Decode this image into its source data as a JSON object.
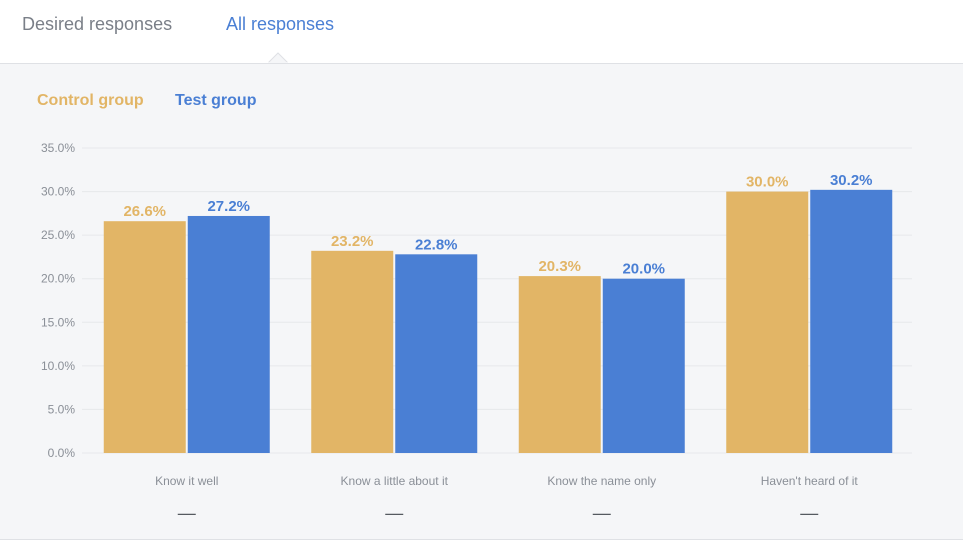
{
  "tabs": {
    "desired": "Desired responses",
    "all": "All responses"
  },
  "colors": {
    "control": "#e2b566",
    "test": "#4a7fd4",
    "grid": "#e6e8eb",
    "dash": "#555a60"
  },
  "chart_data": {
    "type": "bar",
    "categories": [
      "Know it well",
      "Know a little about it",
      "Know the name only",
      "Haven't heard of it"
    ],
    "series": [
      {
        "name": "Control group",
        "values": [
          26.6,
          23.2,
          20.3,
          30.0
        ],
        "labels": [
          "26.6%",
          "23.2%",
          "20.3%",
          "30.0%"
        ]
      },
      {
        "name": "Test group",
        "values": [
          27.2,
          22.8,
          20.0,
          30.2
        ],
        "labels": [
          "27.2%",
          "22.8%",
          "20.0%",
          "30.2%"
        ]
      }
    ],
    "ylim": [
      0,
      35
    ],
    "yticks": [
      "0.0%",
      "5.0%",
      "10.0%",
      "15.0%",
      "20.0%",
      "25.0%",
      "30.0%",
      "35.0%"
    ],
    "category_footer": [
      "—",
      "—",
      "—",
      "—"
    ],
    "grid": true,
    "legend": "top-left"
  }
}
